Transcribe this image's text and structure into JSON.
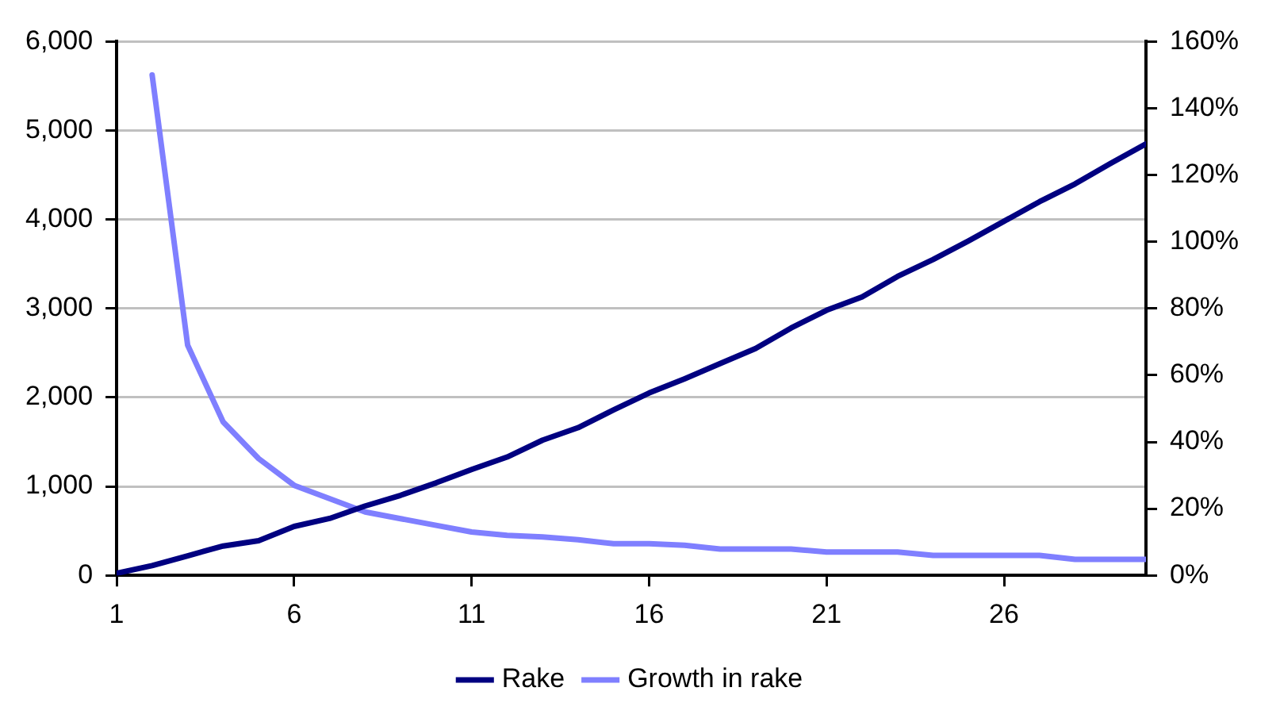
{
  "chart_data": {
    "type": "line",
    "x": [
      1,
      2,
      3,
      4,
      5,
      6,
      7,
      8,
      9,
      10,
      11,
      12,
      13,
      14,
      15,
      16,
      17,
      18,
      19,
      20,
      21,
      22,
      23,
      24,
      25,
      26,
      27,
      28,
      29,
      30
    ],
    "series": [
      {
        "name": "Rake",
        "color": "#000080",
        "values": [
          24,
          110,
          220,
          330,
          390,
          550,
          640,
          780,
          900,
          1040,
          1190,
          1330,
          1520,
          1660,
          1860,
          2050,
          2210,
          2380,
          2550,
          2780,
          2980,
          3130,
          3360,
          3550,
          3760,
          3980,
          4200,
          4400,
          4630,
          4850
        ]
      },
      {
        "name": "Growth in rake",
        "color": "#7f7fff",
        "axis": "y2",
        "values": [
          null,
          150,
          69,
          46,
          35,
          27,
          23,
          19,
          17,
          15,
          13,
          12,
          11.5,
          10.7,
          9.5,
          9.5,
          9,
          7.9,
          7.9,
          7.9,
          7,
          7,
          7,
          6,
          6,
          6,
          6,
          4.8,
          4.8,
          4.8
        ]
      }
    ],
    "xlim": [
      1,
      30
    ],
    "xticks": [
      1,
      6,
      11,
      16,
      21,
      26
    ],
    "ylim": [
      0,
      6000
    ],
    "yticks": [
      {
        "value": 0,
        "label": "0"
      },
      {
        "value": 1000,
        "label": "1,000"
      },
      {
        "value": 2000,
        "label": "2,000"
      },
      {
        "value": 3000,
        "label": "3,000"
      },
      {
        "value": 4000,
        "label": "4,000"
      },
      {
        "value": 5000,
        "label": "5,000"
      },
      {
        "value": 6000,
        "label": "6,000"
      }
    ],
    "y2lim": [
      0,
      160
    ],
    "y2ticks": [
      {
        "value": 0,
        "label": "0%"
      },
      {
        "value": 20,
        "label": "20%"
      },
      {
        "value": 40,
        "label": "40%"
      },
      {
        "value": 60,
        "label": "60%"
      },
      {
        "value": 80,
        "label": "80%"
      },
      {
        "value": 100,
        "label": "100%"
      },
      {
        "value": 120,
        "label": "120%"
      },
      {
        "value": 140,
        "label": "140%"
      },
      {
        "value": 160,
        "label": "160%"
      }
    ],
    "grid": "y",
    "legend": "bottom",
    "marker": "none",
    "line_style": "solid"
  }
}
